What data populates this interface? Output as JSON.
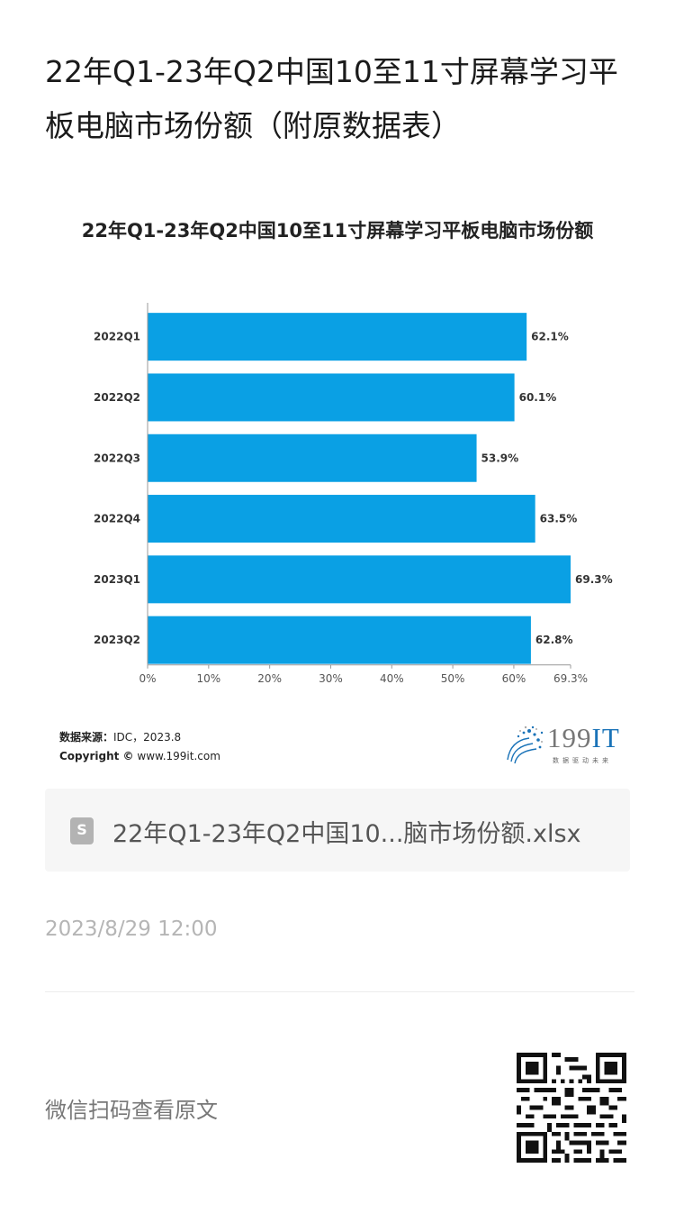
{
  "article": {
    "title": "22年Q1-23年Q2中国10至11寸屏幕学习平板电脑市场份额（附原数据表）"
  },
  "chart_data": {
    "type": "bar",
    "orientation": "horizontal",
    "title": "22年Q1-23年Q2中国10至11寸屏幕学习平板电脑市场份额",
    "categories": [
      "2022Q1",
      "2022Q2",
      "2022Q3",
      "2022Q4",
      "2023Q1",
      "2023Q2"
    ],
    "values": [
      62.1,
      60.1,
      53.9,
      63.5,
      69.3,
      62.8
    ],
    "value_labels": [
      "62.1%",
      "60.1%",
      "53.9%",
      "63.5%",
      "69.3%",
      "62.8%"
    ],
    "xlim": [
      0,
      69.3
    ],
    "x_ticks": [
      0,
      10,
      20,
      30,
      40,
      50,
      60,
      69.3
    ],
    "x_tick_labels": [
      "0%",
      "10%",
      "20%",
      "30%",
      "40%",
      "50%",
      "60%",
      "69.3%"
    ],
    "bar_color": "#0aa0e4",
    "grid": false
  },
  "source": {
    "label": "数据来源：",
    "text": "IDC，2023.8",
    "copyright_label": "Copyright ©",
    "copyright_text": "www.199it.com"
  },
  "logo": {
    "text_num": "199",
    "text_it": "IT",
    "tagline": "数据驱动未来"
  },
  "file": {
    "icon": "spreadsheet-icon",
    "icon_letter": "S",
    "name": "22年Q1-23年Q2中国10...脑市场份额.xlsx"
  },
  "post": {
    "date": "2023/8/29 12:00",
    "scan_text": "微信扫码查看原文"
  },
  "colors": {
    "accent": "#0aa0e4",
    "muted": "#b5b5b5"
  }
}
